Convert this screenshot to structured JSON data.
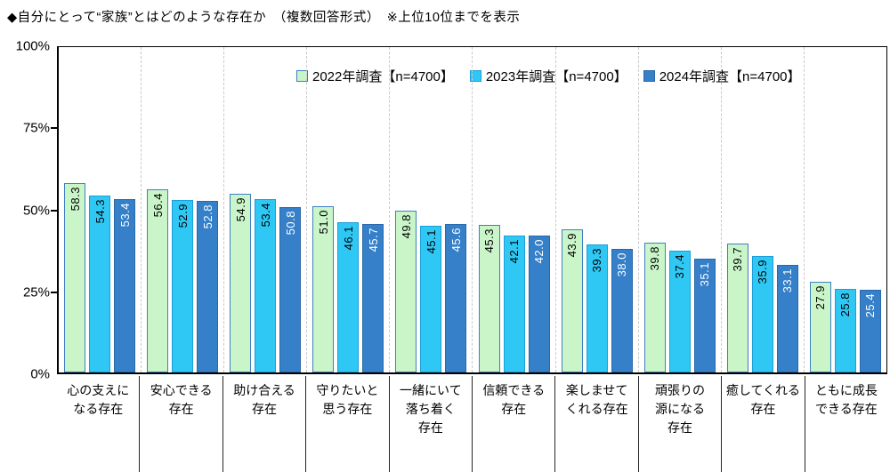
{
  "title": "◆自分にとって“家族”とはどのような存在か　（複数回答形式）　※上位10位までを表示",
  "y_axis": {
    "ticks": [
      {
        "label": "100%",
        "value": 100
      },
      {
        "label": "75%",
        "value": 75
      },
      {
        "label": "50%",
        "value": 50
      },
      {
        "label": "25%",
        "value": 25
      },
      {
        "label": "0%",
        "value": 0
      }
    ]
  },
  "colors": {
    "axis": "#000000",
    "grid_dash": "#c9c9c9",
    "category_divider": "#262626",
    "series_2022": "#c9f5c9",
    "series_2023": "#2fc8f4",
    "series_2024": "#3580c8"
  },
  "chart_data": {
    "type": "bar",
    "title": "自分にとって“家族”とはどのような存在か　（複数回答形式）　※上位10位までを表示",
    "categories": [
      "心の支えになる存在",
      "安心できる存在",
      "助け合える存在",
      "守りたいと思う存在",
      "一緒にいて落ち着く存在",
      "信頼できる存在",
      "楽しませてくれる存在",
      "頑張りの源になる存在",
      "癒してくれる存在",
      "ともに成長できる存在"
    ],
    "category_lines": [
      [
        "心の支えに",
        "なる存在"
      ],
      [
        "安心できる",
        "存在"
      ],
      [
        "助け合える",
        "存在"
      ],
      [
        "守りたいと",
        "思う存在"
      ],
      [
        "一緒にいて",
        "落ち着く",
        "存在"
      ],
      [
        "信頼できる",
        "存在"
      ],
      [
        "楽しませて",
        "くれる存在"
      ],
      [
        "頑張りの",
        "源になる",
        "存在"
      ],
      [
        "癒してくれる",
        "存在"
      ],
      [
        "ともに成長",
        "できる存在"
      ]
    ],
    "series": [
      {
        "name": "2022年調査【n=4700】",
        "key": "2022",
        "color": "#c9f5c9",
        "border_color": "#3f7fc1",
        "label_color": "#000000",
        "values": [
          58.3,
          56.4,
          54.9,
          51.0,
          49.8,
          45.3,
          43.9,
          39.8,
          39.7,
          27.9
        ]
      },
      {
        "name": "2023年調査【n=4700】",
        "key": "2023",
        "color": "#2fc8f4",
        "border_color": "#1c9ed9",
        "label_color": "#000000",
        "values": [
          54.3,
          52.9,
          53.4,
          46.1,
          45.1,
          42.1,
          39.3,
          37.4,
          35.9,
          25.8
        ]
      },
      {
        "name": "2024年調査【n=4700】",
        "key": "2024",
        "color": "#3580c8",
        "border_color": "#2a69a9",
        "label_color": "#ffffff",
        "values": [
          53.4,
          52.8,
          50.8,
          45.7,
          45.6,
          42.0,
          38.0,
          35.1,
          33.1,
          25.4
        ]
      }
    ],
    "xlabel": "",
    "ylabel": "",
    "ylim": [
      0,
      100
    ],
    "grid": "vertical-dashed-only",
    "legend_position": "top"
  }
}
